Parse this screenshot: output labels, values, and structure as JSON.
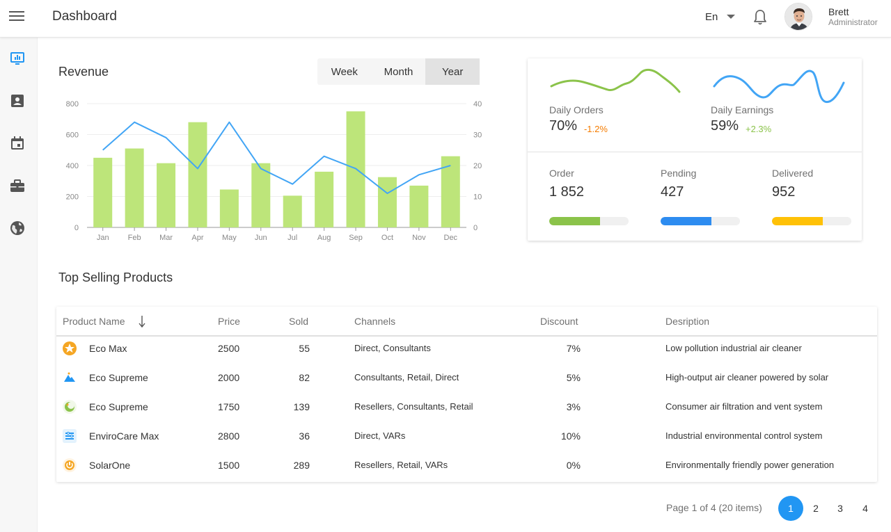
{
  "header": {
    "title": "Dashboard",
    "language": "En",
    "user_name": "Brett",
    "user_role": "Administrator"
  },
  "sidebar": {
    "items": [
      {
        "icon": "monitor-chart-icon",
        "active": true
      },
      {
        "icon": "contact-card-icon",
        "active": false
      },
      {
        "icon": "calendar-icon",
        "active": false
      },
      {
        "icon": "briefcase-icon",
        "active": false
      },
      {
        "icon": "globe-icon",
        "active": false
      }
    ]
  },
  "revenue": {
    "title": "Revenue",
    "periods": [
      "Week",
      "Month",
      "Year"
    ],
    "selected_period": "Year"
  },
  "chart_data": {
    "type": "bar",
    "categories": [
      "Jan",
      "Feb",
      "Mar",
      "Apr",
      "May",
      "Jun",
      "Jul",
      "Aug",
      "Sep",
      "Oct",
      "Nov",
      "Dec"
    ],
    "series": [
      {
        "type": "bar",
        "axis": "left",
        "color": "#bde57a",
        "values": [
          450,
          510,
          415,
          680,
          245,
          415,
          205,
          360,
          750,
          325,
          270,
          460
        ]
      },
      {
        "type": "line",
        "axis": "right",
        "color": "#42a5f5",
        "values": [
          25,
          34,
          29,
          19,
          34,
          19,
          14,
          23,
          19,
          11,
          17,
          20
        ]
      }
    ],
    "y_left": {
      "ticks": [
        0,
        200,
        400,
        600,
        800
      ],
      "ylim": [
        0,
        800
      ]
    },
    "y_right": {
      "ticks": [
        0,
        10,
        20,
        30,
        40
      ],
      "ylim": [
        0,
        40
      ]
    },
    "grid": "horizontal"
  },
  "stats": {
    "daily_orders": {
      "label": "Daily Orders",
      "value": "70%",
      "delta": "-1.2%",
      "delta_color": "#f57c00",
      "spark_color": "#8bc34a"
    },
    "daily_earnings": {
      "label": "Daily Earnings",
      "value": "59%",
      "delta": "+2.3%",
      "delta_color": "#8bc34a",
      "spark_color": "#42a5f5"
    },
    "bars": [
      {
        "label": "Order",
        "value": "1 852",
        "fill": 0.64,
        "color": "#8bc34a"
      },
      {
        "label": "Pending",
        "value": "427",
        "fill": 0.64,
        "color": "#2d8cf0"
      },
      {
        "label": "Delivered",
        "value": "952",
        "fill": 0.64,
        "color": "#ffc107"
      }
    ]
  },
  "products": {
    "title": "Top Selling Products",
    "columns": [
      "Product Name",
      "Price",
      "Sold",
      "Channels",
      "Discount",
      "Desription"
    ],
    "sort_column": "Product Name",
    "sort_direction": "descending",
    "rows": [
      {
        "icon": "star-badge-icon",
        "name": "Eco Max",
        "price": "2500",
        "sold": "55",
        "channels": "Direct, Consultants",
        "discount": "7%",
        "description": "Low pollution industrial air cleaner"
      },
      {
        "icon": "mountain-icon",
        "name": "Eco Supreme",
        "price": "2000",
        "sold": "82",
        "channels": "Consultants, Retail, Direct",
        "discount": "5%",
        "description": "High-output air cleaner powered by solar"
      },
      {
        "icon": "crescent-icon",
        "name": "Eco Supreme",
        "price": "1750",
        "sold": "139",
        "channels": "Resellers, Consultants, Retail",
        "discount": "3%",
        "description": "Consumer air filtration and vent system"
      },
      {
        "icon": "control-panel-icon",
        "name": "EnviroCare Max",
        "price": "2800",
        "sold": "36",
        "channels": "Direct, VARs",
        "discount": "10%",
        "description": "Industrial environmental control system"
      },
      {
        "icon": "power-icon",
        "name": "SolarOne",
        "price": "1500",
        "sold": "289",
        "channels": "Resellers, Retail, VARs",
        "discount": "0%",
        "description": "Environmentally friendly power generation"
      }
    ]
  },
  "pagination": {
    "info": "Page 1 of 4 (20 items)",
    "pages": [
      "1",
      "2",
      "3",
      "4"
    ],
    "current": "1"
  }
}
